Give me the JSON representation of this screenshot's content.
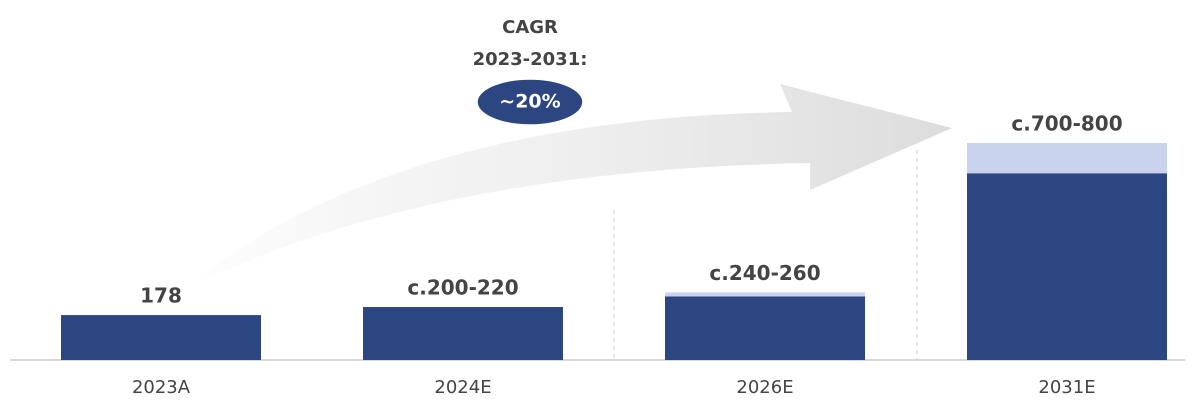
{
  "chart_data": {
    "type": "bar",
    "categories": [
      "2023A",
      "2024E",
      "2026E",
      "2031E"
    ],
    "series": [
      {
        "color": "#2b4681",
        "values": [
          178,
          210,
          252,
          740
        ],
        "value_labels": [
          "178",
          "c.200-220",
          "c.240-260",
          "c.700-800"
        ]
      },
      {
        "color": "#c9d3ee",
        "values": [
          0,
          0,
          16,
          120
        ]
      }
    ],
    "ylim": [
      0,
      860
    ],
    "annotation": {
      "lines": [
        "CAGR",
        "2023-2031:"
      ],
      "badge": "~20%",
      "badge_color": "#2b4681"
    }
  }
}
